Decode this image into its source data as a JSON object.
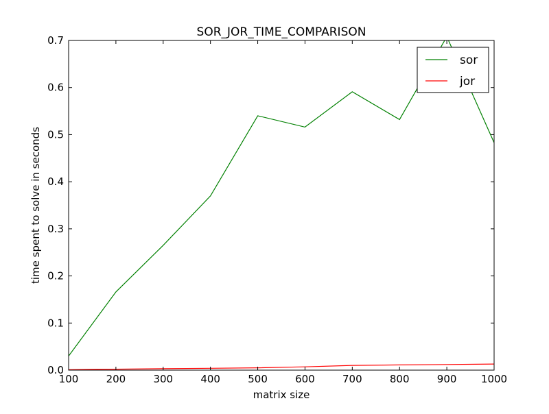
{
  "chart_data": {
    "type": "line",
    "title": "SOR_JOR_TIME_COMPARISON",
    "xlabel": "matrix size",
    "ylabel": "time spent to solve in seconds",
    "xlim": [
      100,
      1000
    ],
    "ylim": [
      0,
      0.7
    ],
    "x_ticks": [
      100,
      200,
      300,
      400,
      500,
      600,
      700,
      800,
      900,
      1000
    ],
    "y_ticks": [
      "0.0",
      "0.1",
      "0.2",
      "0.3",
      "0.4",
      "0.5",
      "0.6",
      "0.7"
    ],
    "x": [
      100,
      200,
      300,
      400,
      500,
      600,
      700,
      800,
      900,
      1000
    ],
    "series": [
      {
        "name": "sor",
        "color": "#008000",
        "values": [
          0.03,
          0.166,
          0.265,
          0.37,
          0.54,
          0.516,
          0.591,
          0.532,
          0.708,
          0.483
        ]
      },
      {
        "name": "jor",
        "color": "#ff0000",
        "values": [
          0.001,
          0.002,
          0.003,
          0.004,
          0.005,
          0.007,
          0.01,
          0.011,
          0.012,
          0.013
        ]
      }
    ],
    "grid": false,
    "legend": "top-right"
  }
}
